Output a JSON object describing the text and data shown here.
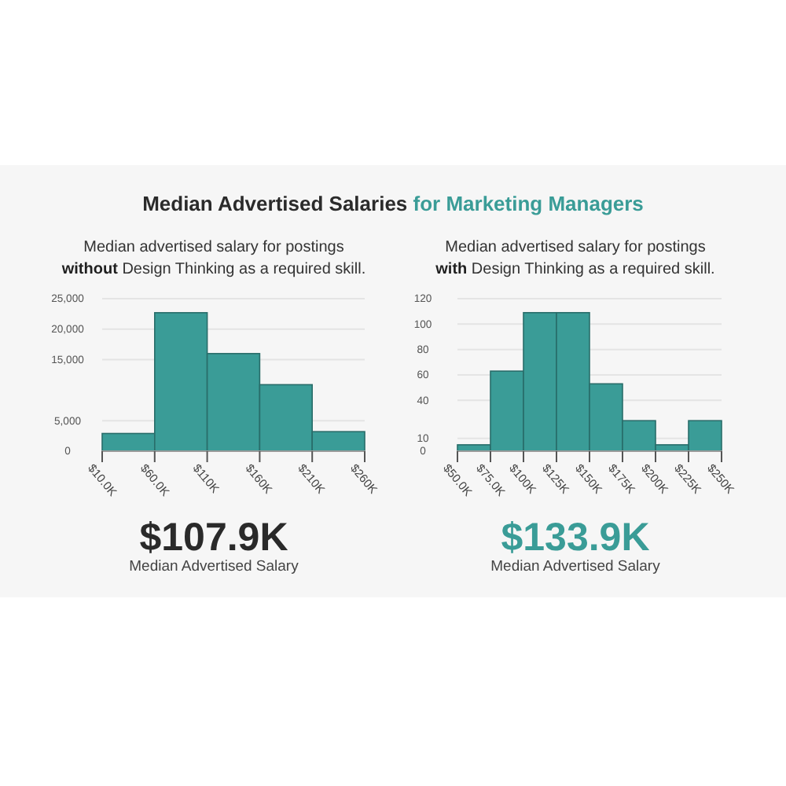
{
  "chart_data": [
    {
      "type": "histogram",
      "title": "Median Advertised Salaries for Marketing Managers",
      "subtitle": "Median advertised salary for postings without Design Thinking as a required skill.",
      "annotations": [
        "$107.9K",
        "Median Advertised Salary"
      ],
      "bins": [
        10,
        60,
        110,
        160,
        210,
        260
      ],
      "values": [
        2900,
        22700,
        16000,
        10900,
        3200
      ],
      "color": "#3a9c97",
      "xlim": [
        10,
        260
      ],
      "xticks": [
        {
          "value": 10,
          "label": "$10.0K"
        },
        {
          "value": 60,
          "label": "$60.0K"
        },
        {
          "value": 110,
          "label": "$110K"
        },
        {
          "value": 160,
          "label": "$160K"
        },
        {
          "value": 210,
          "label": "$210K"
        },
        {
          "value": 260,
          "label": "$260K"
        }
      ],
      "ylim": [
        0,
        25000
      ],
      "yticks": [
        0,
        {
          "value": 5000,
          "label": "5,000"
        },
        {
          "value": 15000,
          "label": "15,000"
        },
        {
          "value": 20000,
          "label": "20,000"
        },
        {
          "value": 25000,
          "label": "25,000"
        }
      ],
      "grid": "y"
    },
    {
      "type": "histogram",
      "subtitle": "Median advertised salary for postings with Design Thinking as a required skill.",
      "annotations": [
        "$133.9K",
        "Median Advertised Salary"
      ],
      "bins": [
        50,
        75,
        100,
        125,
        150,
        175,
        200,
        225,
        250
      ],
      "values": [
        5,
        63,
        109,
        109,
        53,
        24,
        5,
        24
      ],
      "color": "#3a9c97",
      "xlim": [
        50,
        250
      ],
      "xticks": [
        {
          "value": 50,
          "label": "$50.0K"
        },
        {
          "value": 75,
          "label": "$75.0K"
        },
        {
          "value": 100,
          "label": "$100K"
        },
        {
          "value": 125,
          "label": "$125K"
        },
        {
          "value": 150,
          "label": "$150K"
        },
        {
          "value": 175,
          "label": "$175K"
        },
        {
          "value": 200,
          "label": "$200K"
        },
        {
          "value": 225,
          "label": "$225K"
        },
        {
          "value": 250,
          "label": "$250K"
        }
      ],
      "ylim": [
        0,
        120
      ],
      "yticks": [
        0,
        10,
        40,
        60,
        80,
        100,
        120
      ],
      "grid": "y"
    }
  ]
}
